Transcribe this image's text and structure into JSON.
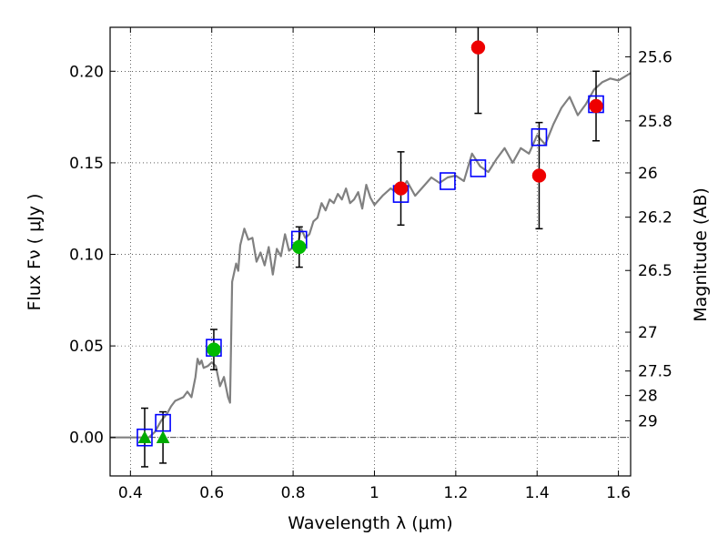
{
  "chart_data": {
    "type": "scatter",
    "xlabel": "Wavelength  λ (μm)",
    "ylabel": "Flux  Fν  ( μJy )",
    "y2label": "Magnitude (AB)",
    "xlim": [
      0.35,
      1.63
    ],
    "ylim": [
      -0.021,
      0.224
    ],
    "grid": true,
    "x_ticks": [
      {
        "value": 0.4,
        "label": "0.4"
      },
      {
        "value": 0.6,
        "label": "0.6"
      },
      {
        "value": 0.8,
        "label": "0.8"
      },
      {
        "value": 1.0,
        "label": "1"
      },
      {
        "value": 1.2,
        "label": "1.2"
      },
      {
        "value": 1.4,
        "label": "1.4"
      },
      {
        "value": 1.6,
        "label": "1.6"
      }
    ],
    "y_ticks": [
      {
        "value": 0.0,
        "label": "0.00"
      },
      {
        "value": 0.05,
        "label": "0.05"
      },
      {
        "value": 0.1,
        "label": "0.10"
      },
      {
        "value": 0.15,
        "label": "0.15"
      },
      {
        "value": 0.2,
        "label": "0.20"
      }
    ],
    "mag_ticks": [
      {
        "flux": 0.2079,
        "label": "25.6"
      },
      {
        "flux": 0.1729,
        "label": "25.8"
      },
      {
        "flux": 0.1445,
        "label": "26"
      },
      {
        "flux": 0.1203,
        "label": "26.2"
      },
      {
        "flux": 0.0912,
        "label": "26.5"
      },
      {
        "flux": 0.0575,
        "label": "27"
      },
      {
        "flux": 0.0363,
        "label": "27.5"
      },
      {
        "flux": 0.0229,
        "label": "28"
      },
      {
        "flux": 0.0091,
        "label": "29"
      }
    ],
    "model_spectrum": {
      "name": "model SED",
      "color": "#808080",
      "x": [
        0.35,
        0.42,
        0.445,
        0.46,
        0.475,
        0.49,
        0.5,
        0.51,
        0.52,
        0.53,
        0.54,
        0.55,
        0.56,
        0.565,
        0.57,
        0.575,
        0.58,
        0.59,
        0.6,
        0.61,
        0.62,
        0.63,
        0.64,
        0.645,
        0.65,
        0.66,
        0.665,
        0.67,
        0.68,
        0.69,
        0.7,
        0.71,
        0.72,
        0.73,
        0.74,
        0.75,
        0.76,
        0.77,
        0.78,
        0.79,
        0.8,
        0.81,
        0.82,
        0.83,
        0.84,
        0.85,
        0.86,
        0.87,
        0.88,
        0.89,
        0.9,
        0.91,
        0.92,
        0.93,
        0.94,
        0.95,
        0.96,
        0.97,
        0.98,
        0.99,
        1.0,
        1.02,
        1.04,
        1.06,
        1.08,
        1.1,
        1.12,
        1.14,
        1.16,
        1.18,
        1.2,
        1.22,
        1.24,
        1.26,
        1.28,
        1.3,
        1.32,
        1.34,
        1.36,
        1.38,
        1.4,
        1.42,
        1.44,
        1.46,
        1.48,
        1.5,
        1.52,
        1.54,
        1.56,
        1.58,
        1.6,
        1.63
      ],
      "y": [
        0.0,
        0.0,
        0.0,
        0.003,
        0.009,
        0.013,
        0.017,
        0.02,
        0.021,
        0.022,
        0.025,
        0.022,
        0.033,
        0.043,
        0.04,
        0.042,
        0.038,
        0.039,
        0.041,
        0.039,
        0.028,
        0.033,
        0.022,
        0.019,
        0.085,
        0.095,
        0.091,
        0.105,
        0.114,
        0.108,
        0.109,
        0.096,
        0.101,
        0.094,
        0.104,
        0.089,
        0.103,
        0.099,
        0.111,
        0.102,
        0.104,
        0.104,
        0.114,
        0.109,
        0.111,
        0.118,
        0.12,
        0.128,
        0.124,
        0.13,
        0.128,
        0.133,
        0.13,
        0.136,
        0.128,
        0.13,
        0.134,
        0.125,
        0.138,
        0.131,
        0.127,
        0.132,
        0.136,
        0.133,
        0.14,
        0.132,
        0.137,
        0.142,
        0.139,
        0.142,
        0.143,
        0.14,
        0.155,
        0.148,
        0.145,
        0.152,
        0.158,
        0.15,
        0.158,
        0.155,
        0.165,
        0.16,
        0.171,
        0.18,
        0.186,
        0.176,
        0.182,
        0.19,
        0.194,
        0.196,
        0.195,
        0.199
      ]
    },
    "model_photometry": {
      "name": "model bandpass flux",
      "marker": "square",
      "color": "#0000ff",
      "x": [
        0.435,
        0.48,
        0.605,
        0.815,
        1.065,
        1.18,
        1.255,
        1.405,
        1.545
      ],
      "y": [
        0.0,
        0.008,
        0.049,
        0.108,
        0.133,
        0.14,
        0.147,
        0.164,
        0.182
      ]
    },
    "series": [
      {
        "name": "triangle points",
        "marker": "triangle",
        "color": "#00aa00",
        "x": [
          0.435,
          0.48
        ],
        "y": [
          0.0,
          0.0
        ],
        "err": [
          0.016,
          0.014
        ]
      },
      {
        "name": "green points",
        "marker": "circle",
        "color": "#00bb00",
        "x": [
          0.605,
          0.815
        ],
        "y": [
          0.048,
          0.104
        ],
        "err": [
          0.011,
          0.011
        ]
      },
      {
        "name": "red points",
        "marker": "circle",
        "color": "#ee0000",
        "x": [
          1.065,
          1.255,
          1.405,
          1.545
        ],
        "y": [
          0.136,
          0.213,
          0.143,
          0.181
        ],
        "err": [
          0.02,
          0.036,
          0.029,
          0.019
        ]
      }
    ]
  }
}
